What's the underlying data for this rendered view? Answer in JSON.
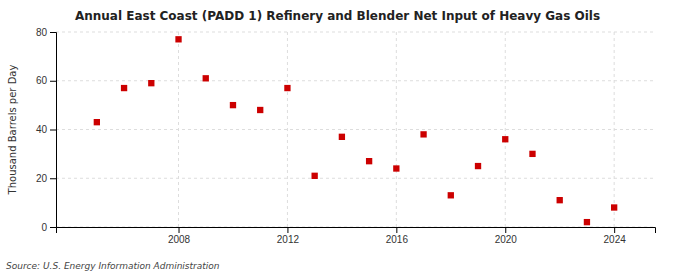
{
  "chart_data": {
    "type": "scatter",
    "title": "Annual East Coast (PADD 1) Refinery and Blender Net Input of Heavy Gas Oils",
    "ylabel": "Thousand Barrels per Day",
    "source": "Source: U.S. Energy Information Administration",
    "x": [
      2005,
      2006,
      2007,
      2008,
      2009,
      2010,
      2011,
      2012,
      2013,
      2014,
      2015,
      2016,
      2017,
      2018,
      2019,
      2020,
      2021,
      2022,
      2023,
      2024
    ],
    "values": [
      43,
      57,
      59,
      77,
      61,
      50,
      48,
      57,
      21,
      37,
      27,
      24,
      38,
      13,
      25,
      36,
      30,
      11,
      2,
      8
    ],
    "color": "#cc0000",
    "marker": "square",
    "xlim": [
      2003.5,
      2025.5
    ],
    "xticks": [
      2008,
      2012,
      2016,
      2020,
      2024
    ],
    "ylim": [
      0,
      80
    ],
    "yticks": [
      0,
      20,
      40,
      60,
      80
    ],
    "grid": true
  }
}
